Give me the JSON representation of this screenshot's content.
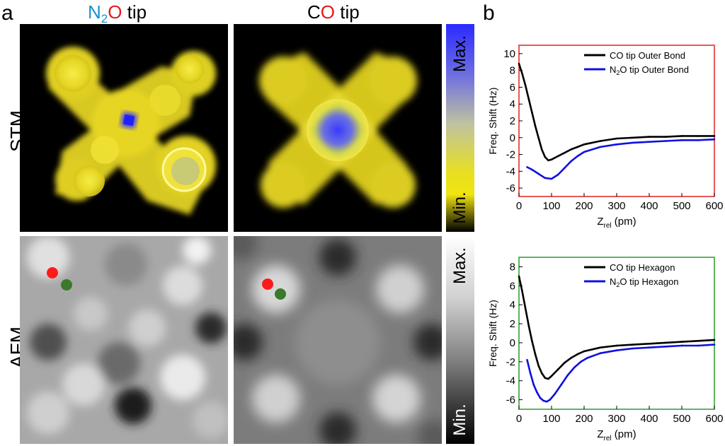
{
  "panel_labels": {
    "a": "a",
    "b": "b"
  },
  "column_titles": {
    "n2o": {
      "n": "N",
      "sub": "2",
      "o": "O",
      "rest": " tip"
    },
    "co": {
      "c": "C",
      "o": "O",
      "rest": " tip"
    }
  },
  "row_labels": {
    "stm": "STM",
    "afm": "AFM"
  },
  "colorbars": {
    "stm": {
      "max": "Max.",
      "min": "Min."
    },
    "afm": {
      "max": "Max.",
      "min": "Min."
    }
  },
  "colors": {
    "n_blue": "#1a8fd0",
    "o_red": "#e41a1c",
    "marker_red": "#ff1a1a",
    "marker_green": "#3a7a2a",
    "co_line": "#000000",
    "n2o_line": "#1010e0"
  },
  "chart_data": [
    {
      "type": "line",
      "title": "",
      "frame_color": "#e02020",
      "xlabel": {
        "main": "Z",
        "sub": "rel",
        "unit": " (pm)"
      },
      "ylabel": "Freq. Shift (Hz)",
      "xlim": [
        0,
        600
      ],
      "ylim": [
        -7,
        11
      ],
      "xticks": [
        0,
        100,
        200,
        300,
        400,
        500,
        600
      ],
      "yticks": [
        -6,
        -4,
        -2,
        0,
        2,
        4,
        6,
        8,
        10
      ],
      "legend": {
        "position": "top-right"
      },
      "series": [
        {
          "name": "CO tip Outer Bond",
          "legend_html": "CO tip Outer Bond",
          "color": "#000000",
          "x": [
            0,
            10,
            20,
            30,
            40,
            50,
            60,
            70,
            80,
            90,
            100,
            120,
            140,
            160,
            180,
            200,
            250,
            300,
            350,
            400,
            450,
            500,
            550,
            600
          ],
          "y": [
            8.8,
            7.6,
            6.2,
            4.6,
            3.0,
            1.4,
            0.0,
            -1.4,
            -2.3,
            -2.7,
            -2.6,
            -2.2,
            -1.8,
            -1.4,
            -1.1,
            -0.8,
            -0.4,
            -0.1,
            0.0,
            0.1,
            0.1,
            0.2,
            0.2,
            0.2
          ]
        },
        {
          "name": "N2O tip Outer Bond",
          "legend_n": "N",
          "legend_sub": "2",
          "legend_rest": "O tip Outer Bond",
          "color": "#1010e0",
          "x": [
            25,
            40,
            60,
            80,
            100,
            120,
            140,
            160,
            180,
            200,
            250,
            300,
            350,
            400,
            450,
            500,
            550,
            600
          ],
          "y": [
            -3.5,
            -3.8,
            -4.3,
            -4.8,
            -4.9,
            -4.4,
            -3.6,
            -2.8,
            -2.2,
            -1.7,
            -1.1,
            -0.8,
            -0.6,
            -0.5,
            -0.4,
            -0.3,
            -0.3,
            -0.2
          ]
        }
      ]
    },
    {
      "type": "line",
      "title": "",
      "frame_color": "#2a9a2a",
      "xlabel": {
        "main": "Z",
        "sub": "rel",
        "unit": " (pm)"
      },
      "ylabel": "Freq. Shift (Hz)",
      "xlim": [
        0,
        600
      ],
      "ylim": [
        -7,
        9
      ],
      "xticks": [
        0,
        100,
        200,
        300,
        400,
        500,
        600
      ],
      "yticks": [
        -6,
        -4,
        -2,
        0,
        2,
        4,
        6,
        8
      ],
      "legend": {
        "position": "top-right"
      },
      "series": [
        {
          "name": "CO tip Hexagon",
          "legend_html": "CO tip Hexagon",
          "color": "#000000",
          "x": [
            0,
            10,
            20,
            30,
            40,
            50,
            60,
            70,
            80,
            90,
            100,
            120,
            140,
            160,
            180,
            200,
            250,
            300,
            350,
            400,
            450,
            500,
            550,
            600
          ],
          "y": [
            7.0,
            5.4,
            3.6,
            1.8,
            0.2,
            -1.2,
            -2.4,
            -3.2,
            -3.7,
            -3.8,
            -3.5,
            -2.8,
            -2.1,
            -1.6,
            -1.2,
            -0.9,
            -0.5,
            -0.3,
            -0.2,
            -0.1,
            0.0,
            0.1,
            0.2,
            0.3
          ]
        },
        {
          "name": "N2O tip Hexagon",
          "legend_n": "N",
          "legend_sub": "2",
          "legend_rest": "O tip Hexagon",
          "color": "#1010e0",
          "x": [
            25,
            35,
            45,
            55,
            65,
            75,
            85,
            95,
            110,
            130,
            150,
            170,
            190,
            210,
            250,
            300,
            350,
            400,
            450,
            500,
            550,
            600
          ],
          "y": [
            -1.8,
            -3.2,
            -4.4,
            -5.2,
            -5.8,
            -6.1,
            -6.2,
            -6.0,
            -5.4,
            -4.4,
            -3.4,
            -2.6,
            -2.0,
            -1.6,
            -1.1,
            -0.8,
            -0.6,
            -0.5,
            -0.4,
            -0.3,
            -0.3,
            -0.2
          ]
        }
      ]
    }
  ]
}
